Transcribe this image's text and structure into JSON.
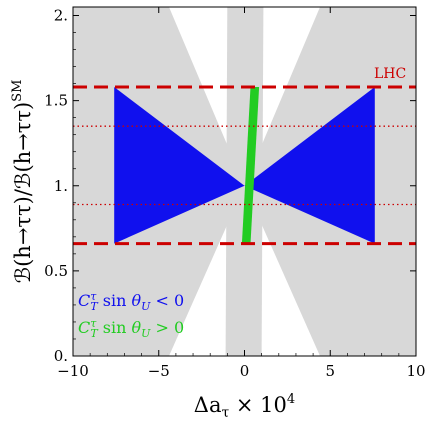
{
  "chart_data": {
    "type": "scatter",
    "xlabel": "Δa_τ × 10^4",
    "ylabel": "ℬ(h→ττ)/ℬ(h→ττ)^SM",
    "xlim": [
      -10,
      10
    ],
    "ylim": [
      0,
      2.05
    ],
    "x_ticks": [
      -10,
      -5,
      0,
      5,
      10
    ],
    "y_ticks": [
      0,
      0.5,
      1,
      1.5,
      2
    ],
    "x_tick_labels": [
      "−10",
      "−5",
      "0",
      "5",
      "10"
    ],
    "y_tick_labels": [
      "0.",
      "0.5",
      "1.",
      "1.5",
      "2."
    ],
    "series": [
      {
        "name": "C_T^τ sin θ_U < 0",
        "color": "#1010ee",
        "region": [
          [
            -7.6,
            0.66
          ],
          [
            -7.6,
            1.58
          ],
          [
            0,
            1.0
          ],
          [
            7.6,
            1.58
          ],
          [
            7.6,
            0.66
          ],
          [
            0,
            1.0
          ]
        ]
      },
      {
        "name": "C_T^τ sin θ_U > 0",
        "color": "#22cc22",
        "region": [
          [
            -0.15,
            0.66
          ],
          [
            0.35,
            0.66
          ],
          [
            0.85,
            1.58
          ],
          [
            0.35,
            1.58
          ]
        ]
      },
      {
        "name": "",
        "color": "#d8d8d8",
        "regions": [
          [
            [
              -10,
              2.05
            ],
            [
              -4.4,
              2.05
            ],
            [
              0,
              1.0
            ],
            [
              -4.4,
              0
            ],
            [
              -10,
              0
            ]
          ],
          [
            [
              10,
              2.05
            ],
            [
              4.4,
              2.05
            ],
            [
              0,
              1.0
            ],
            [
              4.4,
              0
            ],
            [
              10,
              0
            ]
          ],
          [
            [
              -1.0,
              2.05
            ],
            [
              0.0,
              2.05
            ],
            [
              0.1,
              0.0
            ],
            [
              -1.1,
              0.0
            ]
          ],
          [
            [
              1.1,
              2.05
            ],
            [
              0.0,
              2.05
            ],
            [
              -0.1,
              0.0
            ],
            [
              1.0,
              0.0
            ]
          ]
        ]
      }
    ],
    "annotations": [
      {
        "label": "LHC",
        "color": "#cc0000",
        "lines": [
          0.66,
          1.58
        ],
        "style": "dashed"
      },
      {
        "label": "",
        "color": "#cc0000",
        "lines": [
          0.89,
          1.35
        ],
        "style": "dotted"
      }
    ],
    "legend": {
      "position": "bottom-left",
      "entries": [
        {
          "text": "C_T^τ sin θ_U < 0",
          "color": "#1010ee"
        },
        {
          "text": "C_T^τ sin θ_U > 0",
          "color": "#22cc22"
        }
      ]
    },
    "grid": false
  }
}
